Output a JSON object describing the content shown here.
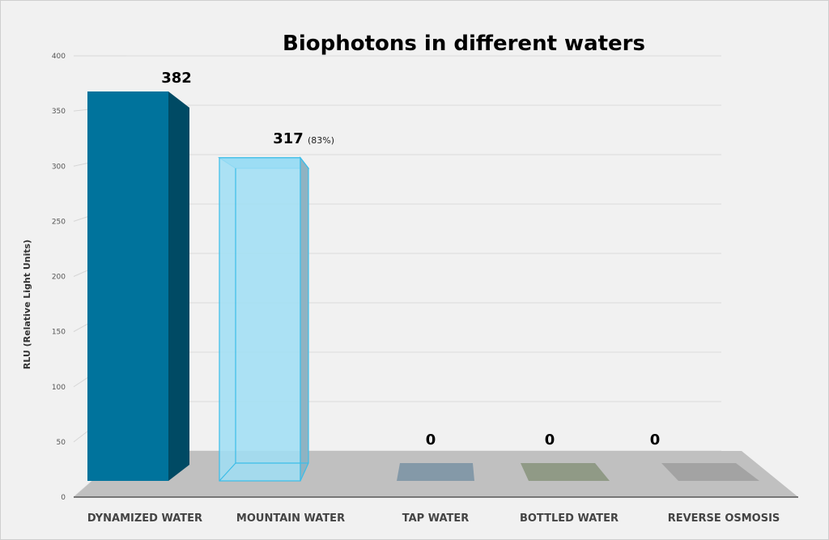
{
  "chart_data": {
    "type": "bar",
    "title": "Biophotons in different waters",
    "xlabel": "",
    "ylabel": "RLU (Relative Light Units)",
    "ylim": [
      0,
      400
    ],
    "yticks": [
      "0",
      "50",
      "100",
      "150",
      "200",
      "250",
      "300",
      "350",
      "400"
    ],
    "grid": true,
    "categories": [
      "DYNAMIZED WATER",
      "MOUNTAIN WATER",
      "TAP WATER",
      "BOTTLED WATER",
      "REVERSE OSMOSIS"
    ],
    "values": [
      382,
      317,
      0,
      0,
      0
    ],
    "value_labels": [
      "382",
      "317",
      "0",
      "0",
      "0"
    ],
    "annotations": [
      "",
      "(83%)",
      "",
      "",
      ""
    ],
    "colors": [
      "#00739c",
      "#9fdef5",
      "#8499a8",
      "#909a86",
      "#a3a3a3"
    ]
  }
}
